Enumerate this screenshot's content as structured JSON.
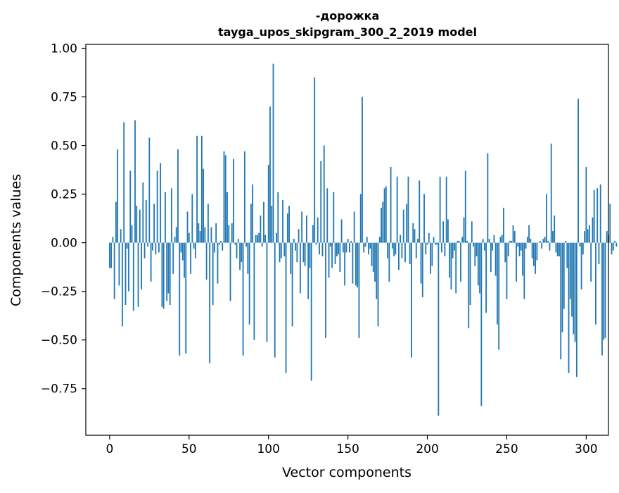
{
  "chart_data": {
    "type": "bar",
    "title_line1": "-дорожка",
    "title_line2": "tayga_upos_skipgram_300_2_2019 model",
    "xlabel": "Vector components",
    "ylabel": "Components values",
    "xlim": [
      -15,
      314
    ],
    "ylim": [
      -0.99,
      1.02
    ],
    "xticks": [
      0,
      50,
      100,
      150,
      200,
      250,
      300
    ],
    "xtick_labels": [
      "0",
      "50",
      "100",
      "150",
      "200",
      "250",
      "300"
    ],
    "yticks": [
      -0.75,
      -0.5,
      -0.25,
      0.0,
      0.25,
      0.5,
      0.75,
      1.0
    ],
    "ytick_labels": [
      "−0.75",
      "−0.50",
      "−0.25",
      "0.00",
      "0.25",
      "0.50",
      "0.75",
      "1.00"
    ],
    "bar_color": "#1f77b4",
    "grid": false,
    "values": [
      -0.13,
      -0.13,
      0.03,
      -0.29,
      0.21,
      0.48,
      -0.22,
      0.07,
      -0.43,
      0.62,
      -0.32,
      -0.03,
      -0.25,
      0.37,
      0.09,
      -0.35,
      0.63,
      0.19,
      -0.33,
      0.17,
      -0.24,
      0.31,
      -0.08,
      0.22,
      -0.02,
      0.54,
      -0.2,
      -0.04,
      0.2,
      -0.06,
      0.37,
      -0.05,
      0.41,
      -0.33,
      -0.34,
      0.26,
      -0.3,
      -0.26,
      -0.32,
      0.28,
      -0.16,
      0.03,
      0.08,
      0.48,
      -0.58,
      -0.05,
      -0.09,
      -0.18,
      -0.57,
      0.16,
      0.05,
      -0.16,
      0.25,
      -0.03,
      -0.08,
      0.55,
      0.1,
      0.06,
      0.55,
      0.38,
      0.08,
      -0.19,
      0.2,
      -0.62,
      0.08,
      -0.32,
      -0.05,
      0.1,
      -0.21,
      -0.01,
      0.01,
      -0.04,
      0.47,
      0.45,
      0.26,
      0.09,
      -0.3,
      0.1,
      0.43,
      -0.01,
      -0.08,
      0.02,
      -0.14,
      -0.1,
      -0.58,
      0.47,
      -0.02,
      -0.16,
      -0.42,
      0.2,
      0.3,
      -0.5,
      0.04,
      0.04,
      0.05,
      0.14,
      -0.02,
      0.21,
      0.04,
      -0.51,
      0.4,
      0.7,
      0.19,
      0.92,
      -0.59,
      0.05,
      0.26,
      -0.1,
      -0.08,
      0.22,
      -0.07,
      -0.67,
      0.15,
      0.19,
      -0.16,
      -0.43,
      0.02,
      -0.04,
      -0.1,
      0.07,
      -0.26,
      0.16,
      -0.1,
      -0.12,
      0.14,
      -0.29,
      -0.13,
      -0.71,
      0.09,
      0.85,
      -0.01,
      0.13,
      -0.06,
      0.42,
      -0.07,
      0.5,
      -0.49,
      0.28,
      -0.18,
      -0.02,
      -0.13,
      0.26,
      -0.11,
      -0.07,
      -0.06,
      -0.15,
      0.12,
      -0.05,
      -0.22,
      -0.05,
      0.02,
      -0.05,
      0.01,
      -0.21,
      0.16,
      -0.22,
      -0.23,
      -0.49,
      0.25,
      0.75,
      -0.05,
      -0.02,
      0.03,
      -0.06,
      -0.03,
      -0.12,
      -0.15,
      -0.2,
      -0.29,
      -0.43,
      0.03,
      0.18,
      0.21,
      0.28,
      0.29,
      -0.08,
      -0.2,
      0.39,
      -0.03,
      -0.07,
      -0.06,
      0.34,
      -0.14,
      0.04,
      -0.08,
      0.17,
      -0.1,
      0.2,
      0.34,
      -0.11,
      -0.59,
      0.1,
      0.07,
      -0.08,
      0.02,
      0.32,
      -0.21,
      -0.28,
      0.25,
      -0.06,
      -0.01,
      0.05,
      -0.16,
      -0.12,
      0.03,
      -0.01,
      -0.01,
      -0.89,
      0.34,
      -0.05,
      0.11,
      -0.07,
      0.34,
      0.12,
      -0.18,
      -0.24,
      -0.08,
      -0.04,
      -0.26,
      0.01,
      0.01,
      -0.2,
      0.03,
      0.13,
      0.37,
      0.01,
      -0.44,
      -0.32,
      0.11,
      -0.02,
      -0.12,
      -0.07,
      -0.22,
      -0.26,
      -0.84,
      0.02,
      -0.04,
      -0.36,
      0.46,
      0.02,
      -0.15,
      -0.04,
      0.04,
      -0.17,
      -0.42,
      -0.55,
      0.03,
      0.04,
      0.18,
      -0.1,
      -0.29,
      -0.07,
      0.01,
      0.01,
      0.09,
      0.06,
      -0.2,
      -0.02,
      -0.07,
      -0.04,
      -0.17,
      -0.29,
      -0.03,
      0.03,
      0.09,
      0.02,
      -0.08,
      -0.12,
      -0.16,
      -0.09,
      0.0,
      0.01,
      -0.03,
      0.02,
      0.03,
      0.25,
      0.01,
      -0.04,
      0.51,
      0.06,
      0.14,
      -0.05,
      -0.07,
      -0.07,
      -0.6,
      -0.46,
      -0.34,
      0.01,
      -0.13,
      -0.67,
      -0.29,
      -0.38,
      -0.47,
      -0.51,
      -0.69,
      0.74,
      -0.02,
      -0.24,
      -0.06,
      0.06,
      0.39,
      0.07,
      0.09,
      -0.2,
      0.13,
      0.27,
      -0.42,
      0.28,
      -0.11,
      0.3,
      -0.58,
      -0.5,
      -0.49,
      0.06,
      0.04,
      0.2,
      -0.06,
      -0.04,
      0.01,
      -0.02
    ]
  }
}
